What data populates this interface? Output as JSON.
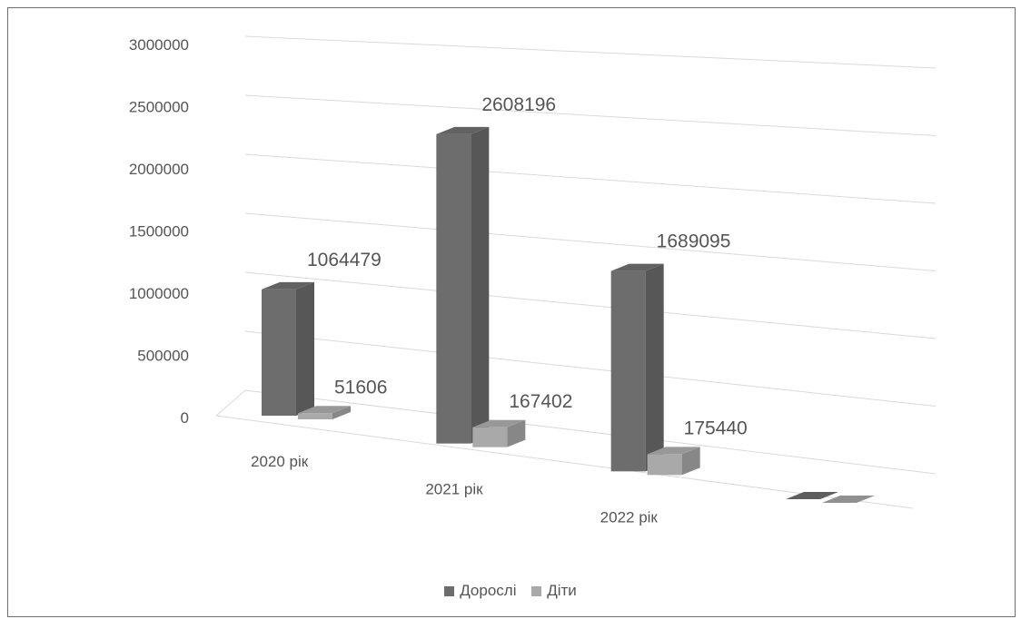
{
  "chart_data": {
    "type": "bar",
    "title": "",
    "xlabel": "",
    "ylabel": "",
    "categories": [
      "2020 рік",
      "2021 рік",
      "2022 рік",
      ""
    ],
    "series": [
      {
        "name": "Дорослі",
        "values": [
          1064479,
          2608196,
          1689095,
          0
        ],
        "labels": [
          "1064479",
          "2608196",
          "1689095",
          ""
        ],
        "color": "#6d6d6d"
      },
      {
        "name": "Діти",
        "values": [
          51606,
          167402,
          175440,
          0
        ],
        "labels": [
          "51606",
          "167402",
          "175440",
          ""
        ],
        "color": "#a9a9a9"
      }
    ],
    "ylim": [
      0,
      3000000
    ],
    "yticks": [
      "0",
      "500000",
      "1000000",
      "1500000",
      "2000000",
      "2500000",
      "3000000"
    ],
    "grid": true,
    "legend_position": "bottom",
    "style": "3d-column"
  }
}
